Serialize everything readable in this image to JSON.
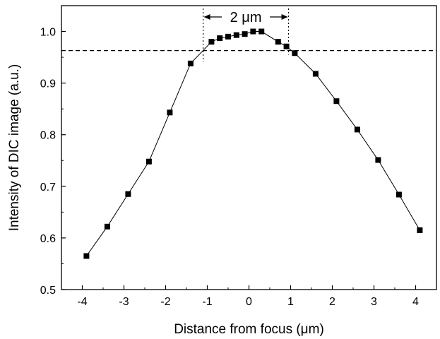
{
  "chart_data": {
    "type": "line",
    "xlabel": "Distance from focus (μm)",
    "ylabel": "Intensity of DIC image (a.u.)",
    "xlim": [
      -4.5,
      4.5
    ],
    "ylim": [
      0.5,
      1.05
    ],
    "x_ticks": [
      -4,
      -3,
      -2,
      -1,
      0,
      1,
      2,
      3,
      4
    ],
    "x_tick_labels": [
      "-4",
      "-3",
      "-2",
      "-1",
      "0",
      "1",
      "2",
      "3",
      "4"
    ],
    "y_ticks": [
      0.5,
      0.6,
      0.7,
      0.8,
      0.9,
      1.0
    ],
    "y_tick_labels": [
      "0.5",
      "0.6",
      "0.7",
      "0.8",
      "0.9",
      "1.0"
    ],
    "grid": false,
    "marker": "square",
    "series": [
      {
        "x": [
          -3.9,
          -3.4,
          -2.9,
          -2.4,
          -1.9,
          -1.4,
          -0.9,
          -0.7,
          -0.5,
          -0.3,
          -0.1,
          0.1,
          0.3,
          0.7,
          0.9,
          1.1,
          1.6,
          2.1,
          2.6,
          3.1,
          3.6,
          4.1
        ],
        "y": [
          0.565,
          0.622,
          0.685,
          0.748,
          0.843,
          0.938,
          0.98,
          0.987,
          0.99,
          0.993,
          0.995,
          1.0,
          1.0,
          0.98,
          0.971,
          0.958,
          0.918,
          0.865,
          0.81,
          0.751,
          0.684,
          0.615
        ]
      }
    ],
    "threshold_line": {
      "y": 0.963,
      "style": "dashed"
    },
    "bracket": {
      "x_start": -1.1,
      "x_end": 0.95,
      "style": "dotted"
    },
    "annotations": [
      {
        "text": "2 μm"
      }
    ]
  }
}
